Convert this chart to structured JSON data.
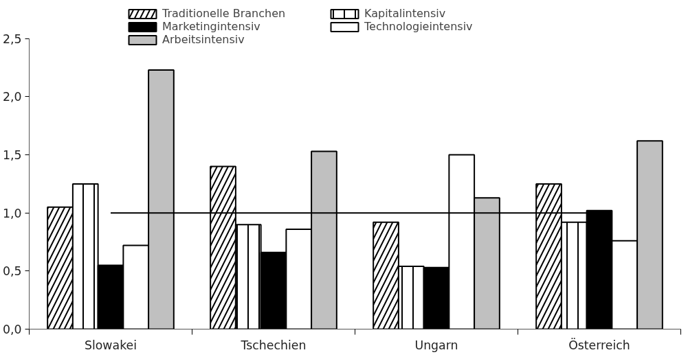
{
  "chart_data": {
    "type": "bar",
    "categories": [
      "Slowakei",
      "Tschechien",
      "Ungarn",
      "Österreich"
    ],
    "series": [
      {
        "name": "Traditionelle Branchen",
        "color": "#ffffff",
        "values": [
          1.05,
          1.4,
          0.92,
          1.25
        ]
      },
      {
        "name": "Kapitalintensiv",
        "color": "#ffffff",
        "values": [
          1.25,
          0.9,
          0.54,
          0.92
        ]
      },
      {
        "name": "Marketingintensiv",
        "color": "#000000",
        "values": [
          0.55,
          0.66,
          0.53,
          1.02
        ]
      },
      {
        "name": "Technologieintensiv",
        "color": "#ffffff",
        "values": [
          0.72,
          0.86,
          1.5,
          0.76
        ]
      },
      {
        "name": "Arbeitsintensiv",
        "color": "#c0c0c0",
        "values": [
          2.23,
          1.53,
          1.13,
          1.62
        ]
      }
    ],
    "ylim": [
      0,
      2.5
    ],
    "yticks": [
      {
        "value": 0,
        "label": "0,0"
      },
      {
        "value": 0.5,
        "label": "0,5"
      },
      {
        "value": 1,
        "label": "1,0"
      },
      {
        "value": 1.5,
        "label": "1,5"
      },
      {
        "value": 2,
        "label": "2,0"
      },
      {
        "value": 2.5,
        "label": "2,5"
      }
    ],
    "ref_lines": [
      {
        "axis": "y",
        "value": 1,
        "color": "#000000"
      }
    ],
    "grid": false,
    "legend": "top"
  }
}
